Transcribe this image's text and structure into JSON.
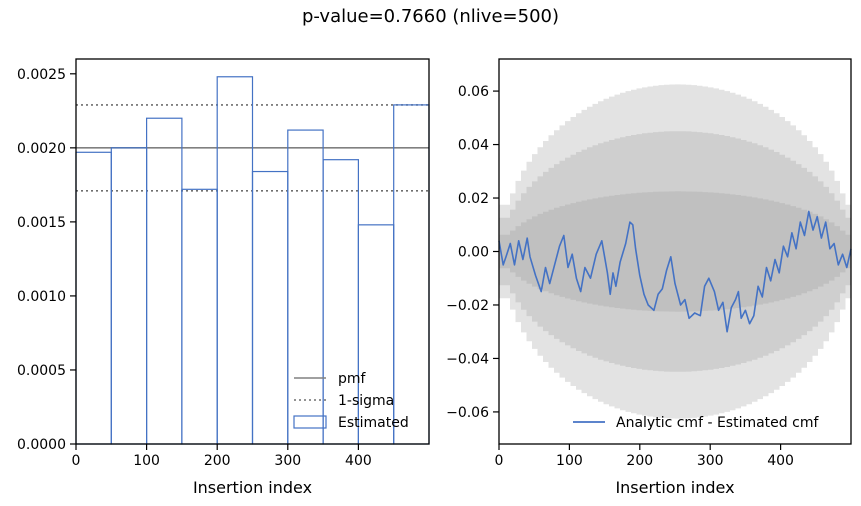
{
  "figure": {
    "title": "p-value=0.7660 (nlive=500)"
  },
  "chart_data": [
    {
      "type": "histogram",
      "xlabel": "Insertion index",
      "ylabel": "",
      "xlim": [
        0,
        500
      ],
      "ylim": [
        0,
        0.0026
      ],
      "xticks": [
        0,
        100,
        200,
        300,
        400
      ],
      "yticks": [
        0,
        0.0005,
        0.001,
        0.0015,
        0.002,
        0.0025
      ],
      "ytick_labels": [
        "0.0000",
        "0.0005",
        "0.0010",
        "0.0015",
        "0.0020",
        "0.0025"
      ],
      "pmf": 0.002,
      "sigma_lines": [
        0.00229,
        0.00171
      ],
      "bin_edges": [
        0,
        50,
        100,
        150,
        200,
        250,
        300,
        350,
        400,
        450,
        500
      ],
      "values": [
        0.00197,
        0.002,
        0.0022,
        0.00172,
        0.00248,
        0.00184,
        0.00212,
        0.00192,
        0.00148,
        0.00229
      ],
      "legend": {
        "position": "lower-right",
        "entries": [
          {
            "label": "pmf",
            "style": "solid-gray"
          },
          {
            "label": "1-sigma",
            "style": "dotted-gray"
          },
          {
            "label": "Estimated",
            "style": "box-blue"
          }
        ]
      },
      "colors": {
        "estimated": "#4472c4",
        "pmf": "#808080"
      }
    },
    {
      "type": "line",
      "xlabel": "Insertion index",
      "ylabel": "",
      "xlim": [
        0,
        500
      ],
      "ylim": [
        -0.072,
        0.072
      ],
      "xticks": [
        0,
        100,
        200,
        300,
        400
      ],
      "yticks": [
        -0.06,
        -0.04,
        -0.02,
        0.0,
        0.02,
        0.04,
        0.06
      ],
      "ytick_labels": [
        "−0.06",
        "−0.04",
        "−0.02",
        "0.00",
        "0.02",
        "0.04",
        "0.06"
      ],
      "bands": [
        {
          "level": 1,
          "halfwidth_max": 0.0225,
          "color": "#c0c0c0"
        },
        {
          "level": 2,
          "halfwidth_max": 0.045,
          "color": "#cfcfcf"
        },
        {
          "level": 3,
          "halfwidth_max": 0.0625,
          "color": "#e3e3e3"
        }
      ],
      "series": [
        {
          "name": "Analytic cmf - Estimated cmf",
          "color": "#4472c4",
          "x": [
            0,
            6,
            10,
            16,
            22,
            28,
            34,
            40,
            44,
            52,
            60,
            66,
            72,
            80,
            86,
            92,
            98,
            104,
            110,
            116,
            122,
            130,
            138,
            146,
            150,
            154,
            158,
            162,
            166,
            172,
            180,
            186,
            190,
            194,
            200,
            206,
            212,
            220,
            226,
            232,
            238,
            244,
            250,
            258,
            264,
            270,
            278,
            286,
            292,
            298,
            306,
            312,
            318,
            324,
            330,
            336,
            340,
            344,
            350,
            356,
            362,
            368,
            374,
            380,
            386,
            392,
            398,
            404,
            410,
            416,
            422,
            428,
            434,
            440,
            446,
            452,
            458,
            464,
            470,
            476,
            482,
            488,
            494,
            500
          ],
          "y": [
            0.004,
            -0.005,
            -0.002,
            0.003,
            -0.005,
            0.004,
            -0.003,
            0.005,
            -0.002,
            -0.009,
            -0.015,
            -0.006,
            -0.012,
            -0.004,
            0.002,
            0.006,
            -0.006,
            -0.001,
            -0.01,
            -0.015,
            -0.006,
            -0.01,
            -0.001,
            0.004,
            -0.002,
            -0.008,
            -0.016,
            -0.008,
            -0.013,
            -0.004,
            0.003,
            0.011,
            0.01,
            0.001,
            -0.009,
            -0.016,
            -0.02,
            -0.022,
            -0.016,
            -0.014,
            -0.007,
            -0.002,
            -0.012,
            -0.02,
            -0.018,
            -0.025,
            -0.023,
            -0.024,
            -0.013,
            -0.01,
            -0.015,
            -0.022,
            -0.019,
            -0.03,
            -0.021,
            -0.018,
            -0.015,
            -0.025,
            -0.022,
            -0.027,
            -0.024,
            -0.013,
            -0.017,
            -0.006,
            -0.011,
            -0.003,
            -0.008,
            0.002,
            -0.002,
            0.007,
            0.001,
            0.011,
            0.006,
            0.015,
            0.008,
            0.013,
            0.005,
            0.011,
            0.001,
            0.003,
            -0.005,
            -0.001,
            -0.006,
            0.001
          ]
        }
      ],
      "legend": {
        "position": "lower-right"
      }
    }
  ]
}
